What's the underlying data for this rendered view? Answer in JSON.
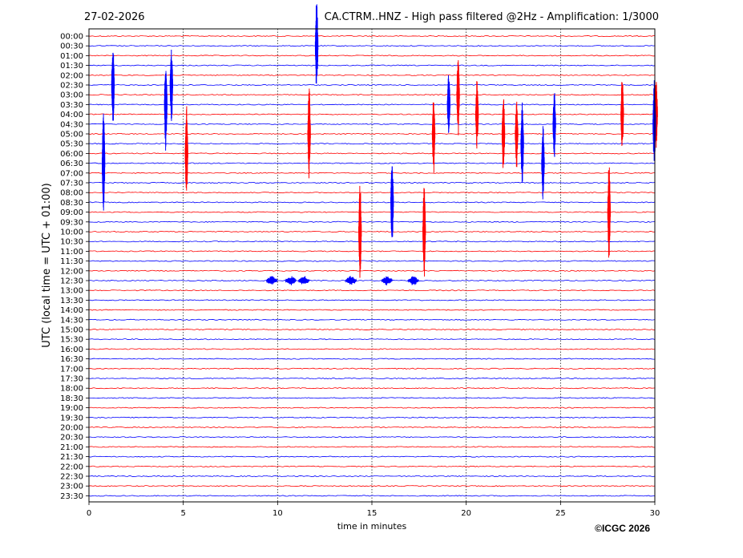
{
  "header": {
    "date": "27-02-2026",
    "title": "CA.CTRM..HNZ - High pass filtered @2Hz - Amplification: 1/3000"
  },
  "copyright": "©ICGC 2026",
  "colors": {
    "red": "#ff0000",
    "blue": "#0000ff",
    "grid": "#000000"
  },
  "chart_data": {
    "type": "line",
    "title": "CA.CTRM..HNZ - High pass filtered @2Hz - Amplification: 1/3000",
    "xlabel": "time in minutes",
    "ylabel": "UTC (local time = UTC + 01:00)",
    "xlim": [
      0,
      30
    ],
    "xticks": [
      "0",
      "5",
      "10",
      "15",
      "20",
      "25",
      "30"
    ],
    "grid": "vertical dotted at each 5 minutes",
    "row_labels": [
      "00:00",
      "00:30",
      "01:00",
      "01:30",
      "02:00",
      "02:30",
      "03:00",
      "03:30",
      "04:00",
      "04:30",
      "05:00",
      "05:30",
      "06:00",
      "06:30",
      "07:00",
      "07:30",
      "08:00",
      "08:30",
      "09:00",
      "09:30",
      "10:00",
      "10:30",
      "11:00",
      "11:30",
      "12:00",
      "12:30",
      "13:00",
      "13:30",
      "14:00",
      "14:30",
      "15:00",
      "15:30",
      "16:00",
      "16:30",
      "17:00",
      "17:30",
      "18:00",
      "18:30",
      "19:00",
      "19:30",
      "20:00",
      "20:30",
      "21:00",
      "21:30",
      "22:00",
      "22:30",
      "23:00",
      "23:30"
    ],
    "row_colors": "alternating red (even rows) / blue (odd rows)",
    "events": [
      {
        "row": 1,
        "minute": 12.0,
        "amplitude": 1.6
      },
      {
        "row": 5,
        "minute": 1.2,
        "amplitude": 1.5
      },
      {
        "row": 5,
        "minute": 4.3,
        "amplitude": 1.4
      },
      {
        "row": 6,
        "minute": 19.5,
        "amplitude": 1.5
      },
      {
        "row": 7,
        "minute": 4.0,
        "amplitude": 1.6
      },
      {
        "row": 7,
        "minute": 19.0,
        "amplitude": 1.2
      },
      {
        "row": 8,
        "minute": 28.2,
        "amplitude": 1.3
      },
      {
        "row": 8,
        "minute": 30.0,
        "amplitude": 1.2
      },
      {
        "row": 8,
        "minute": 20.5,
        "amplitude": 1.2
      },
      {
        "row": 9,
        "minute": 24.6,
        "amplitude": 1.2
      },
      {
        "row": 9,
        "minute": 29.9,
        "amplitude": 1.6
      },
      {
        "row": 10,
        "minute": 11.6,
        "amplitude": 1.6
      },
      {
        "row": 10,
        "minute": 18.2,
        "amplitude": 1.4
      },
      {
        "row": 10,
        "minute": 21.9,
        "amplitude": 1.4
      },
      {
        "row": 10,
        "minute": 22.6,
        "amplitude": 1.2
      },
      {
        "row": 11,
        "minute": 22.9,
        "amplitude": 1.5
      },
      {
        "row": 12,
        "minute": 5.1,
        "amplitude": 1.7
      },
      {
        "row": 13,
        "minute": 0.7,
        "amplitude": 1.8
      },
      {
        "row": 13,
        "minute": 24.0,
        "amplitude": 1.3
      },
      {
        "row": 17,
        "minute": 16.0,
        "amplitude": 1.6
      },
      {
        "row": 18,
        "minute": 27.5,
        "amplitude": 1.7
      },
      {
        "row": 20,
        "minute": 14.3,
        "amplitude": 1.7
      },
      {
        "row": 20,
        "minute": 17.7,
        "amplitude": 1.6
      }
    ]
  }
}
